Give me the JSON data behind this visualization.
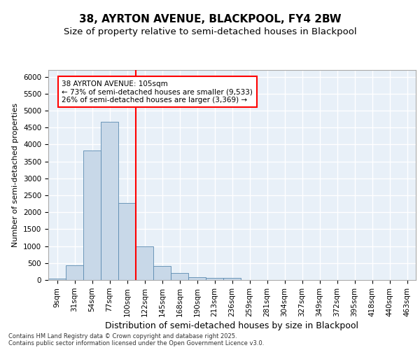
{
  "title_line1": "38, AYRTON AVENUE, BLACKPOOL, FY4 2BW",
  "title_line2": "Size of property relative to semi-detached houses in Blackpool",
  "xlabel": "Distribution of semi-detached houses by size in Blackpool",
  "ylabel": "Number of semi-detached properties",
  "bin_labels": [
    "9sqm",
    "31sqm",
    "54sqm",
    "77sqm",
    "100sqm",
    "122sqm",
    "145sqm",
    "168sqm",
    "190sqm",
    "213sqm",
    "236sqm",
    "259sqm",
    "281sqm",
    "304sqm",
    "327sqm",
    "349sqm",
    "372sqm",
    "395sqm",
    "418sqm",
    "440sqm",
    "463sqm"
  ],
  "bar_values": [
    50,
    430,
    3820,
    4670,
    2280,
    1000,
    410,
    200,
    85,
    70,
    60,
    0,
    0,
    0,
    0,
    0,
    0,
    0,
    0,
    0,
    0
  ],
  "bar_color": "#c8d8e8",
  "bar_edge_color": "#5a8ab0",
  "annotation_line1": "38 AYRTON AVENUE: 105sqm",
  "annotation_line2": "← 73% of semi-detached houses are smaller (9,533)",
  "annotation_line3": "26% of semi-detached houses are larger (3,369) →",
  "vline_x": 4.5,
  "vline_color": "red",
  "ylim": [
    0,
    6200
  ],
  "yticks": [
    0,
    500,
    1000,
    1500,
    2000,
    2500,
    3000,
    3500,
    4000,
    4500,
    5000,
    5500,
    6000
  ],
  "background_color": "#e8f0f8",
  "footer_text": "Contains HM Land Registry data © Crown copyright and database right 2025.\nContains public sector information licensed under the Open Government Licence v3.0.",
  "grid_color": "white",
  "title_fontsize": 11,
  "subtitle_fontsize": 9.5,
  "annotation_fontsize": 7.5,
  "ylabel_fontsize": 8,
  "xlabel_fontsize": 9,
  "tick_fontsize": 7.5,
  "footer_fontsize": 6.0
}
